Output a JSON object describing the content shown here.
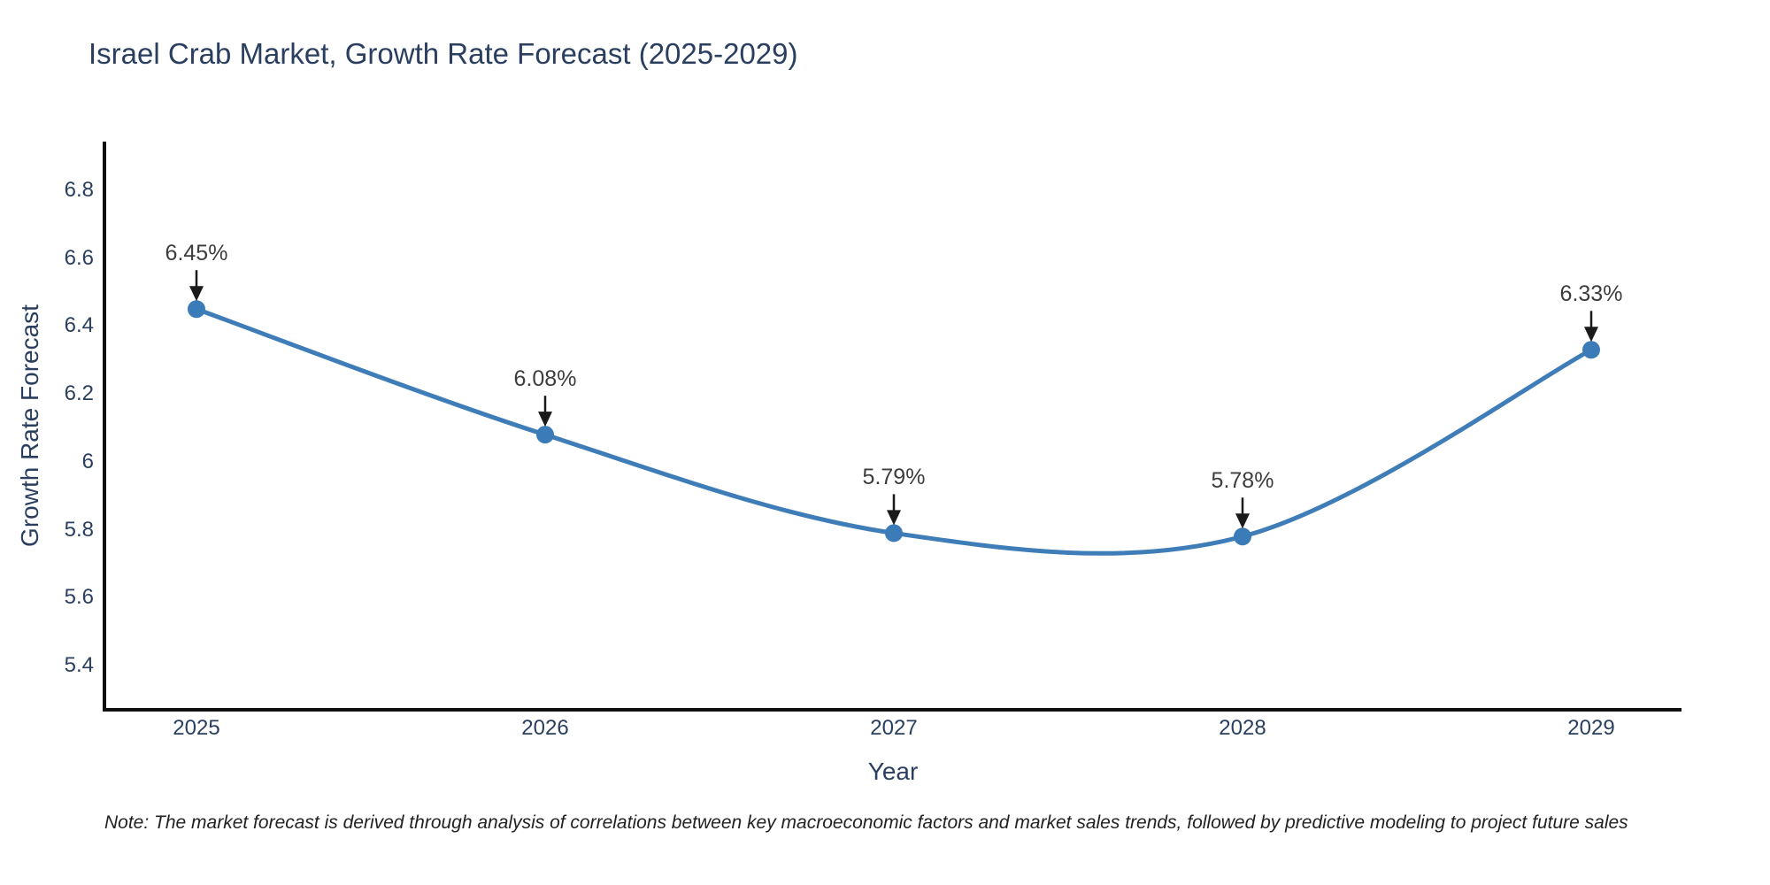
{
  "title": "Israel Crab Market, Growth Rate Forecast (2025-2029)",
  "note": "Note: The market forecast is derived through analysis of correlations between key macroeconomic factors and market sales trends, followed by predictive modeling to project future sales",
  "chart_data": {
    "type": "line",
    "title": "Israel Crab Market, Growth Rate Forecast (2025-2029)",
    "xlabel": "Year",
    "ylabel": "Growth Rate Forecast",
    "line_shape": "spline",
    "grid": false,
    "legend": false,
    "x": [
      2025,
      2026,
      2027,
      2028,
      2029
    ],
    "values": [
      6.45,
      6.08,
      5.79,
      5.78,
      6.33
    ],
    "point_labels": [
      "6.45%",
      "6.08%",
      "5.79%",
      "5.78%",
      "6.33%"
    ],
    "xtick_labels": [
      "2025",
      "2026",
      "2027",
      "2028",
      "2029"
    ],
    "ytick_labels": [
      "6.8",
      "6.6",
      "6.4",
      "6.2",
      "6",
      "5.8",
      "5.6",
      "5.4"
    ],
    "ytick_values": [
      6.8,
      6.6,
      6.4,
      6.2,
      6.0,
      5.8,
      5.6,
      5.4
    ],
    "ylim": [
      5.27,
      6.94
    ],
    "colors": {
      "line": "#3f7db8",
      "marker": "#3b7cb8",
      "axis": "#111111",
      "arrow": "#1a1a1a",
      "text": "#2a3f5f",
      "annotation_text": "#3d3d3d"
    }
  }
}
